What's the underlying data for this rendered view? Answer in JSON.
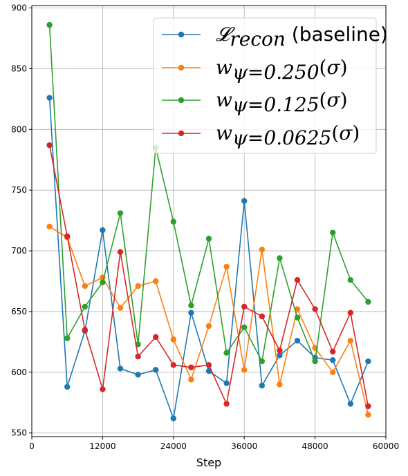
{
  "chart_data": {
    "type": "line",
    "xlabel": "Step",
    "ylabel": "",
    "title": "",
    "xlim": [
      0,
      60000
    ],
    "ylim": [
      547,
      902
    ],
    "xticks": [
      0,
      12000,
      24000,
      36000,
      48000,
      60000
    ],
    "yticks": [
      550,
      600,
      650,
      700,
      750,
      800,
      850,
      900
    ],
    "grid": true,
    "legend_position": "top-right",
    "x": [
      3000,
      6000,
      9000,
      12000,
      15000,
      18000,
      21000,
      24000,
      27000,
      30000,
      33000,
      36000,
      39000,
      42000,
      45000,
      48000,
      51000,
      54000,
      57000
    ],
    "series": [
      {
        "name": "𝓛_recon (baseline)",
        "color": "#1f77b4",
        "values": [
          826,
          588,
          634,
          717,
          603,
          598,
          602,
          562,
          649,
          601,
          591,
          741,
          589,
          614,
          626,
          612,
          610,
          574,
          609
        ]
      },
      {
        "name": "w_ψ=0.250(σ)",
        "color": "#ff7f0e",
        "values": [
          720,
          711,
          671,
          678,
          653,
          671,
          675,
          627,
          594,
          638,
          687,
          602,
          701,
          590,
          652,
          620,
          600,
          626,
          565
        ]
      },
      {
        "name": "w_ψ=0.125(σ)",
        "color": "#2ca02c",
        "values": [
          886,
          628,
          654,
          674,
          731,
          623,
          785,
          724,
          655,
          710,
          616,
          637,
          609,
          694,
          645,
          609,
          715,
          676,
          658
        ]
      },
      {
        "name": "w_ψ=0.0625(σ)",
        "color": "#d62728",
        "values": [
          787,
          712,
          635,
          586,
          699,
          613,
          629,
          606,
          604,
          606,
          574,
          654,
          646,
          618,
          676,
          652,
          617,
          649,
          572
        ]
      }
    ]
  }
}
